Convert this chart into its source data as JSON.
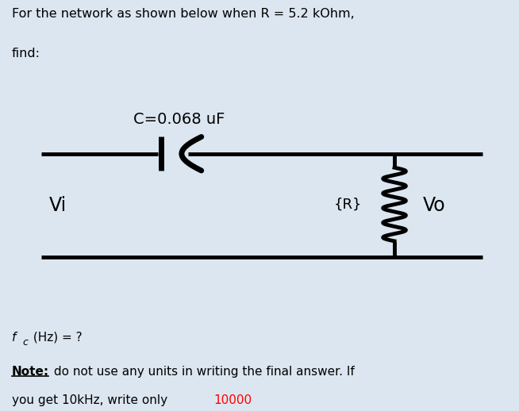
{
  "bg_color_top": "#dce6f0",
  "bg_color_circuit": "#ffffff",
  "bg_color_bottom": "#dce6f0",
  "title_line1": "For the network as shown below when R = 5.2 kOhm,",
  "title_line2": "find:",
  "capacitor_label": "C=0.068 uF",
  "resistor_label": "{R}",
  "vi_label": "Vi",
  "vo_label": "Vo",
  "fc_label_f": "f",
  "fc_label_c": "c",
  "fc_label_rest": " (Hz) = ?",
  "note_word": "Note:",
  "note_body": " do not use any units in writing the final answer. If",
  "note_body2": "you get 10kHz, write only ",
  "note_highlight": "10000",
  "note_highlight_color": "#ff0000",
  "line_color": "#000000",
  "text_color": "#000000",
  "line_width": 3.5
}
